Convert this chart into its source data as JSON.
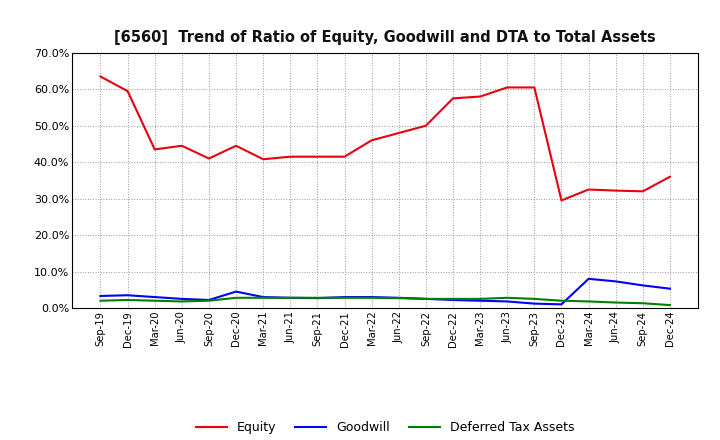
{
  "title": "[6560]  Trend of Ratio of Equity, Goodwill and DTA to Total Assets",
  "x_labels": [
    "Sep-19",
    "Dec-19",
    "Mar-20",
    "Jun-20",
    "Sep-20",
    "Dec-20",
    "Mar-21",
    "Jun-21",
    "Sep-21",
    "Dec-21",
    "Mar-22",
    "Jun-22",
    "Sep-22",
    "Dec-22",
    "Mar-23",
    "Jun-23",
    "Sep-23",
    "Dec-23",
    "Mar-24",
    "Jun-24",
    "Sep-24",
    "Dec-24"
  ],
  "equity": [
    0.635,
    0.595,
    0.435,
    0.445,
    0.41,
    0.445,
    0.408,
    0.415,
    0.415,
    0.415,
    0.46,
    0.48,
    0.5,
    0.575,
    0.58,
    0.605,
    0.605,
    0.295,
    0.325,
    0.322,
    0.32,
    0.36
  ],
  "goodwill": [
    0.033,
    0.035,
    0.03,
    0.025,
    0.022,
    0.045,
    0.03,
    0.028,
    0.027,
    0.03,
    0.03,
    0.028,
    0.025,
    0.022,
    0.02,
    0.018,
    0.012,
    0.01,
    0.08,
    0.073,
    0.062,
    0.053
  ],
  "dta": [
    0.02,
    0.022,
    0.02,
    0.018,
    0.02,
    0.028,
    0.028,
    0.028,
    0.028,
    0.028,
    0.028,
    0.027,
    0.025,
    0.025,
    0.025,
    0.028,
    0.025,
    0.02,
    0.018,
    0.015,
    0.013,
    0.008
  ],
  "equity_color": "#e8000d",
  "goodwill_color": "#0000ff",
  "dta_color": "#008000",
  "bg_color": "#ffffff",
  "grid_color": "#999999",
  "ylim": [
    0.0,
    0.7
  ],
  "yticks": [
    0.0,
    0.1,
    0.2,
    0.3,
    0.4,
    0.5,
    0.6,
    0.7
  ]
}
